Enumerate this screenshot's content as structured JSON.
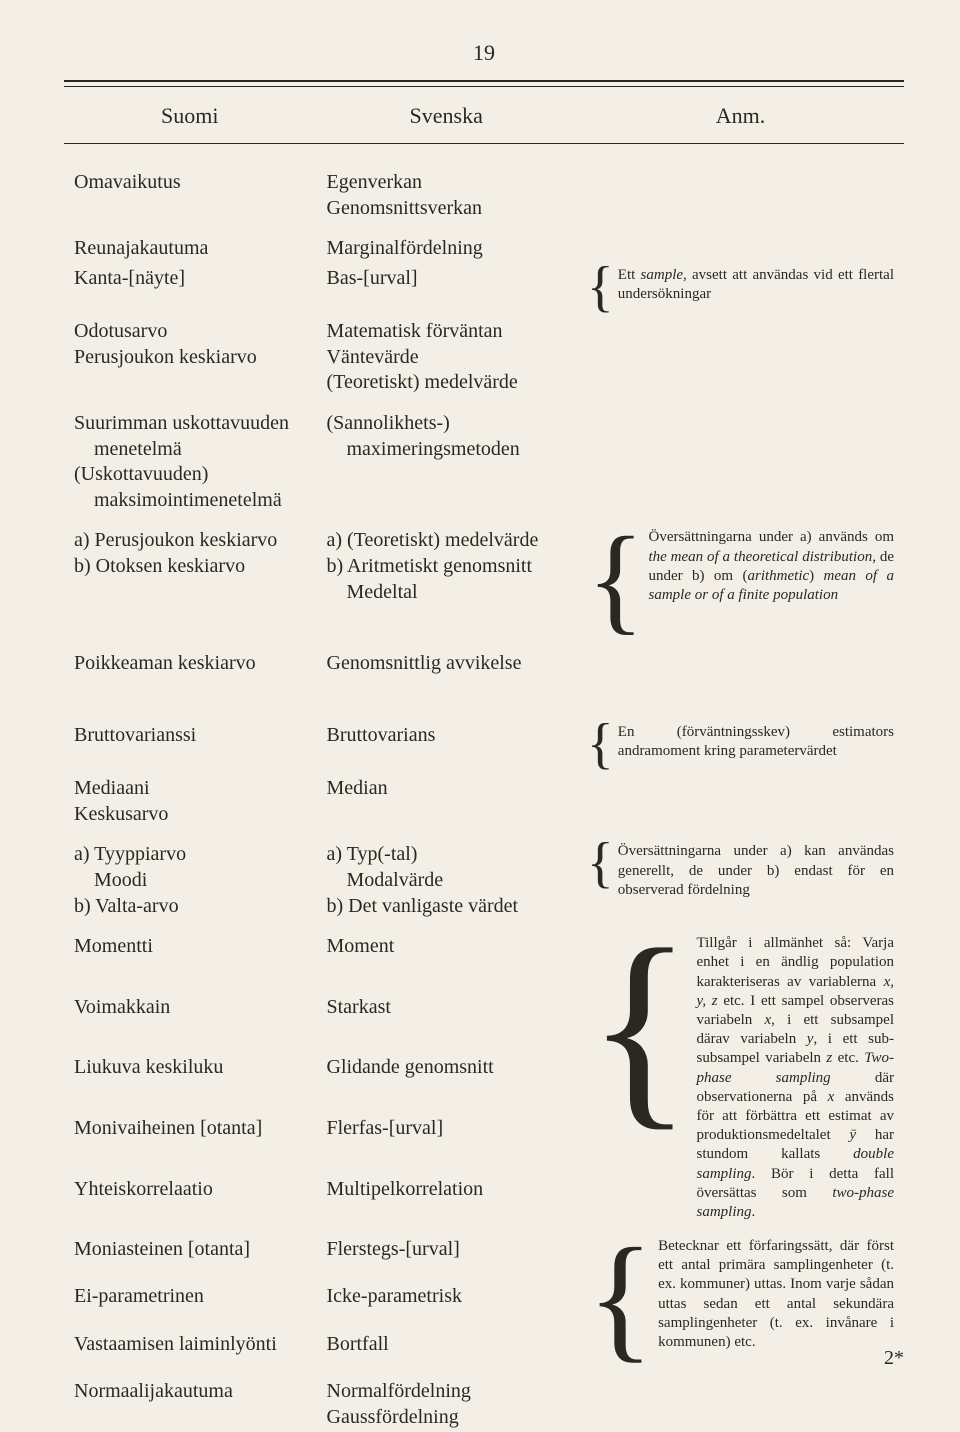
{
  "page_number": "19",
  "imprint": "2*",
  "columns": {
    "c1_width": "30%",
    "c2_width": "31%",
    "c3_width": "39%"
  },
  "headers": {
    "fi": "Suomi",
    "sv": "Svenska",
    "note": "Anm."
  },
  "typography": {
    "body_fontsize_pt": 15,
    "note_fontsize_pt": 11,
    "header_fontsize_pt": 16
  },
  "colors": {
    "background": "#f3efe6",
    "text": "#2b2821",
    "rule": "#2b2821"
  },
  "rows": {
    "r1": {
      "fi": "Omavaikutus",
      "sv": "Egenverkan",
      "sv2": "Genomsnittsverkan"
    },
    "r2": {
      "fi": "Reunajakautuma",
      "sv": "Marginalfördelning"
    },
    "r3": {
      "fi": "Kanta-[näyte]",
      "sv": "Bas-[urval]"
    },
    "r4": {
      "fi": "Odotusarvo",
      "fi2": "Perusjoukon keskiarvo",
      "sv": "Matematisk förväntan",
      "sv2": "Väntevärde",
      "sv3": "(Teoretiskt) medelvärde"
    },
    "r5": {
      "fi": "Suurimman uskottavuuden",
      "fi2": "menetelmä",
      "fi3": "(Uskottavuuden)",
      "fi4": "maksimointimenetelmä",
      "sv": "(Sannolikhets-)",
      "sv2": "maximeringsmetoden"
    },
    "r6": {
      "fi": "a) Perusjoukon keskiarvo",
      "fi2": "b) Otoksen keskiarvo",
      "sv": "a) (Teoretiskt) medelvärde",
      "sv2": "b) Aritmetiskt genomsnitt",
      "sv3": "Medeltal"
    },
    "r7": {
      "fi": "Poikkeaman keskiarvo",
      "sv": "Genomsnittlig avvikelse"
    },
    "r8": {
      "fi": "Bruttovarianssi",
      "sv": "Bruttovarians"
    },
    "r9": {
      "fi": "Mediaani",
      "fi2": "Keskusarvo",
      "sv": "Median"
    },
    "r10": {
      "fi": "a) Tyyppiarvo",
      "fi2": "Moodi",
      "fi3": "b) Valta-arvo",
      "sv": "a) Typ(-tal)",
      "sv2": "Modalvärde",
      "sv3": "b) Det vanligaste värdet"
    },
    "r11": {
      "fi": "Momentti",
      "sv": "Moment"
    },
    "r12": {
      "fi": "Voimakkain",
      "sv": "Starkast"
    },
    "r13": {
      "fi": "Liukuva keskiluku",
      "sv": "Glidande genomsnitt"
    },
    "r14": {
      "fi": "Monivaiheinen [otanta]",
      "sv": "Flerfas-[urval]"
    },
    "r15": {
      "fi": "Yhteiskorrelaatio",
      "sv": "Multipelkorrelation"
    },
    "r16": {
      "fi": "Moniasteinen [otanta]",
      "sv": "Flerstegs-[urval]"
    },
    "r17": {
      "fi": "Ei-parametrinen",
      "sv": "Icke-parametrisk"
    },
    "r18": {
      "fi": "Vastaamisen laiminlyönti",
      "sv": "Bortfall"
    },
    "r19": {
      "fi": "Normaalijakautuma",
      "sv": "Normalfördelning",
      "sv2": "Gaussfördelning"
    }
  },
  "notes": {
    "n3": "Ett <i>sample</i>, avsett att användas vid ett flertal undersökningar",
    "n6": "Översättningarna under a) används om <i>the mean of a theoretical distribution</i>, de under b) om (<i>arithmetic</i>) <i>mean of a sample or of a finite population</i>",
    "n8": "En (förväntningsskev) estimators andramoment kring parameter­värdet",
    "n10": "Översättningarna under a) kan an­vändas generellt, de under b) endast för en observerad fördelning",
    "n_mid": "Tillgår i allmänhet så: Varja enhet i en ändlig population karakteriseras av variablerna <i>x, y, z</i> etc. I ett sam­pel observeras variabeln <i>x</i>, i ett sub­sampel därav variabeln <i>y</i>, i ett sub­subsampel variabeln <i>z</i> etc. <i>Two-phase sampling</i> där observationerna på <i>x</i> används för att förbättra ett estimat av produktionsmedeltalet <i>ȳ</i> har stundom kallats <i>double sampling</i>. Bör i detta fall översättas som <i>two-phase sampling</i>.",
    "n16": "Betecknar ett förfaringssätt, där först ett antal primära sampling­enheter (t. ex. kommuner) uttas. Inom varje sådan uttas sedan ett antal sekundära samplingenheter (t. ex. invånare i kommunen) etc."
  }
}
